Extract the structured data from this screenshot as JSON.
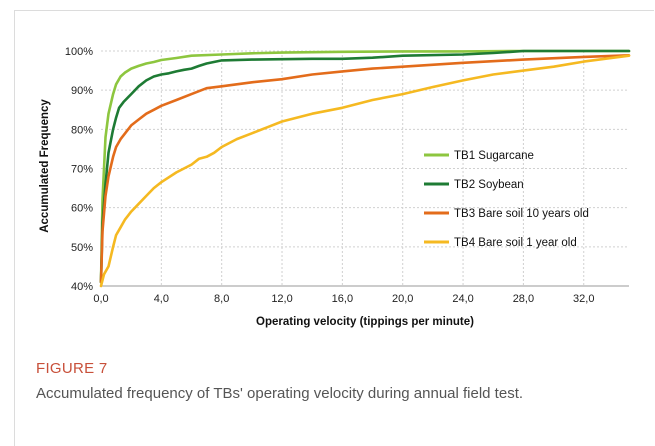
{
  "figure": {
    "label": "FIGURE 7",
    "caption": "Accumulated frequency of TBs' operating velocity during annual field test."
  },
  "chart_data": {
    "type": "line",
    "title": "",
    "xlabel": "Operating velocity (tippings per minute)",
    "ylabel": "Accumulated Frequency",
    "xlim": [
      0,
      35
    ],
    "ylim": [
      40,
      100
    ],
    "x_ticks": [
      "0,0",
      "4,0",
      "8,0",
      "12,0",
      "16,0",
      "20,0",
      "24,0",
      "28,0",
      "32,0"
    ],
    "x_tick_values": [
      0,
      4,
      8,
      12,
      16,
      20,
      24,
      28,
      32
    ],
    "y_ticks": [
      "40%",
      "50%",
      "60%",
      "70%",
      "80%",
      "90%",
      "100%"
    ],
    "y_tick_values": [
      40,
      50,
      60,
      70,
      80,
      90,
      100
    ],
    "grid": true,
    "legend_position": "center-right",
    "series": [
      {
        "name": "TB1 Sugarcane",
        "color": "#8dc63f",
        "x": [
          0,
          0.1,
          0.3,
          0.5,
          0.8,
          1.0,
          1.3,
          1.6,
          2.0,
          2.5,
          3.0,
          3.5,
          4.0,
          5.0,
          6.0,
          8.0,
          10.0,
          12.0,
          16.0,
          20.0,
          24.0,
          28.0,
          35.0
        ],
        "y": [
          41,
          62,
          78,
          84,
          89,
          91.5,
          93.5,
          94.5,
          95.5,
          96.2,
          96.8,
          97.2,
          97.7,
          98.2,
          98.8,
          99.1,
          99.4,
          99.6,
          99.8,
          99.9,
          99.9,
          100,
          100
        ]
      },
      {
        "name": "TB2 Soybean",
        "color": "#1e7b34",
        "x": [
          0,
          0.1,
          0.3,
          0.5,
          0.8,
          1.0,
          1.2,
          1.5,
          2.0,
          2.5,
          3.0,
          3.5,
          4.0,
          4.5,
          5.0,
          5.5,
          6.0,
          6.5,
          7.0,
          8.0,
          10.0,
          12.0,
          14.0,
          16.0,
          18.0,
          20.0,
          24.0,
          26.0,
          28.0,
          35.0
        ],
        "y": [
          41,
          56,
          66,
          74,
          80,
          83,
          85.5,
          87,
          89,
          91,
          92.5,
          93.5,
          94,
          94.3,
          94.8,
          95.2,
          95.5,
          96.2,
          96.8,
          97.6,
          97.8,
          97.9,
          98,
          98,
          98.3,
          98.8,
          99.1,
          99.5,
          100,
          100
        ]
      },
      {
        "name": "TB3 Bare soil 10 years old",
        "color": "#e36c1b",
        "x": [
          0,
          0.1,
          0.3,
          0.5,
          0.8,
          1.0,
          1.3,
          1.6,
          2.0,
          2.5,
          3.0,
          3.5,
          4.0,
          5.0,
          6.0,
          7.0,
          8.0,
          10.0,
          12.0,
          14.0,
          16.0,
          18.0,
          20.0,
          24.0,
          28.0,
          32.0,
          35.0
        ],
        "y": [
          41,
          54,
          63,
          68,
          73,
          75.5,
          77.5,
          79,
          81,
          82.5,
          84,
          85,
          86,
          87.5,
          89,
          90.5,
          91,
          92,
          92.8,
          94,
          94.8,
          95.5,
          96,
          97,
          97.8,
          98.5,
          98.9
        ]
      },
      {
        "name": "TB4 Bare soil 1 year old",
        "color": "#f5b921",
        "x": [
          0,
          0.2,
          0.5,
          0.8,
          1.0,
          1.3,
          1.6,
          2.0,
          2.5,
          3.0,
          3.5,
          4.0,
          5.0,
          6.0,
          6.5,
          7.0,
          7.5,
          8.0,
          9.0,
          10.0,
          11.0,
          12.0,
          14.0,
          16.0,
          18.0,
          20.0,
          22.0,
          24.0,
          26.0,
          28.0,
          30.0,
          32.0,
          35.0
        ],
        "y": [
          40,
          43,
          45,
          50,
          53,
          55,
          57,
          59,
          61,
          63,
          65,
          66.5,
          69,
          71,
          72.5,
          73,
          74,
          75.5,
          77.5,
          79,
          80.5,
          82,
          84,
          85.5,
          87.5,
          89,
          90.8,
          92.5,
          94,
          95,
          96,
          97.3,
          98.8
        ]
      }
    ]
  }
}
